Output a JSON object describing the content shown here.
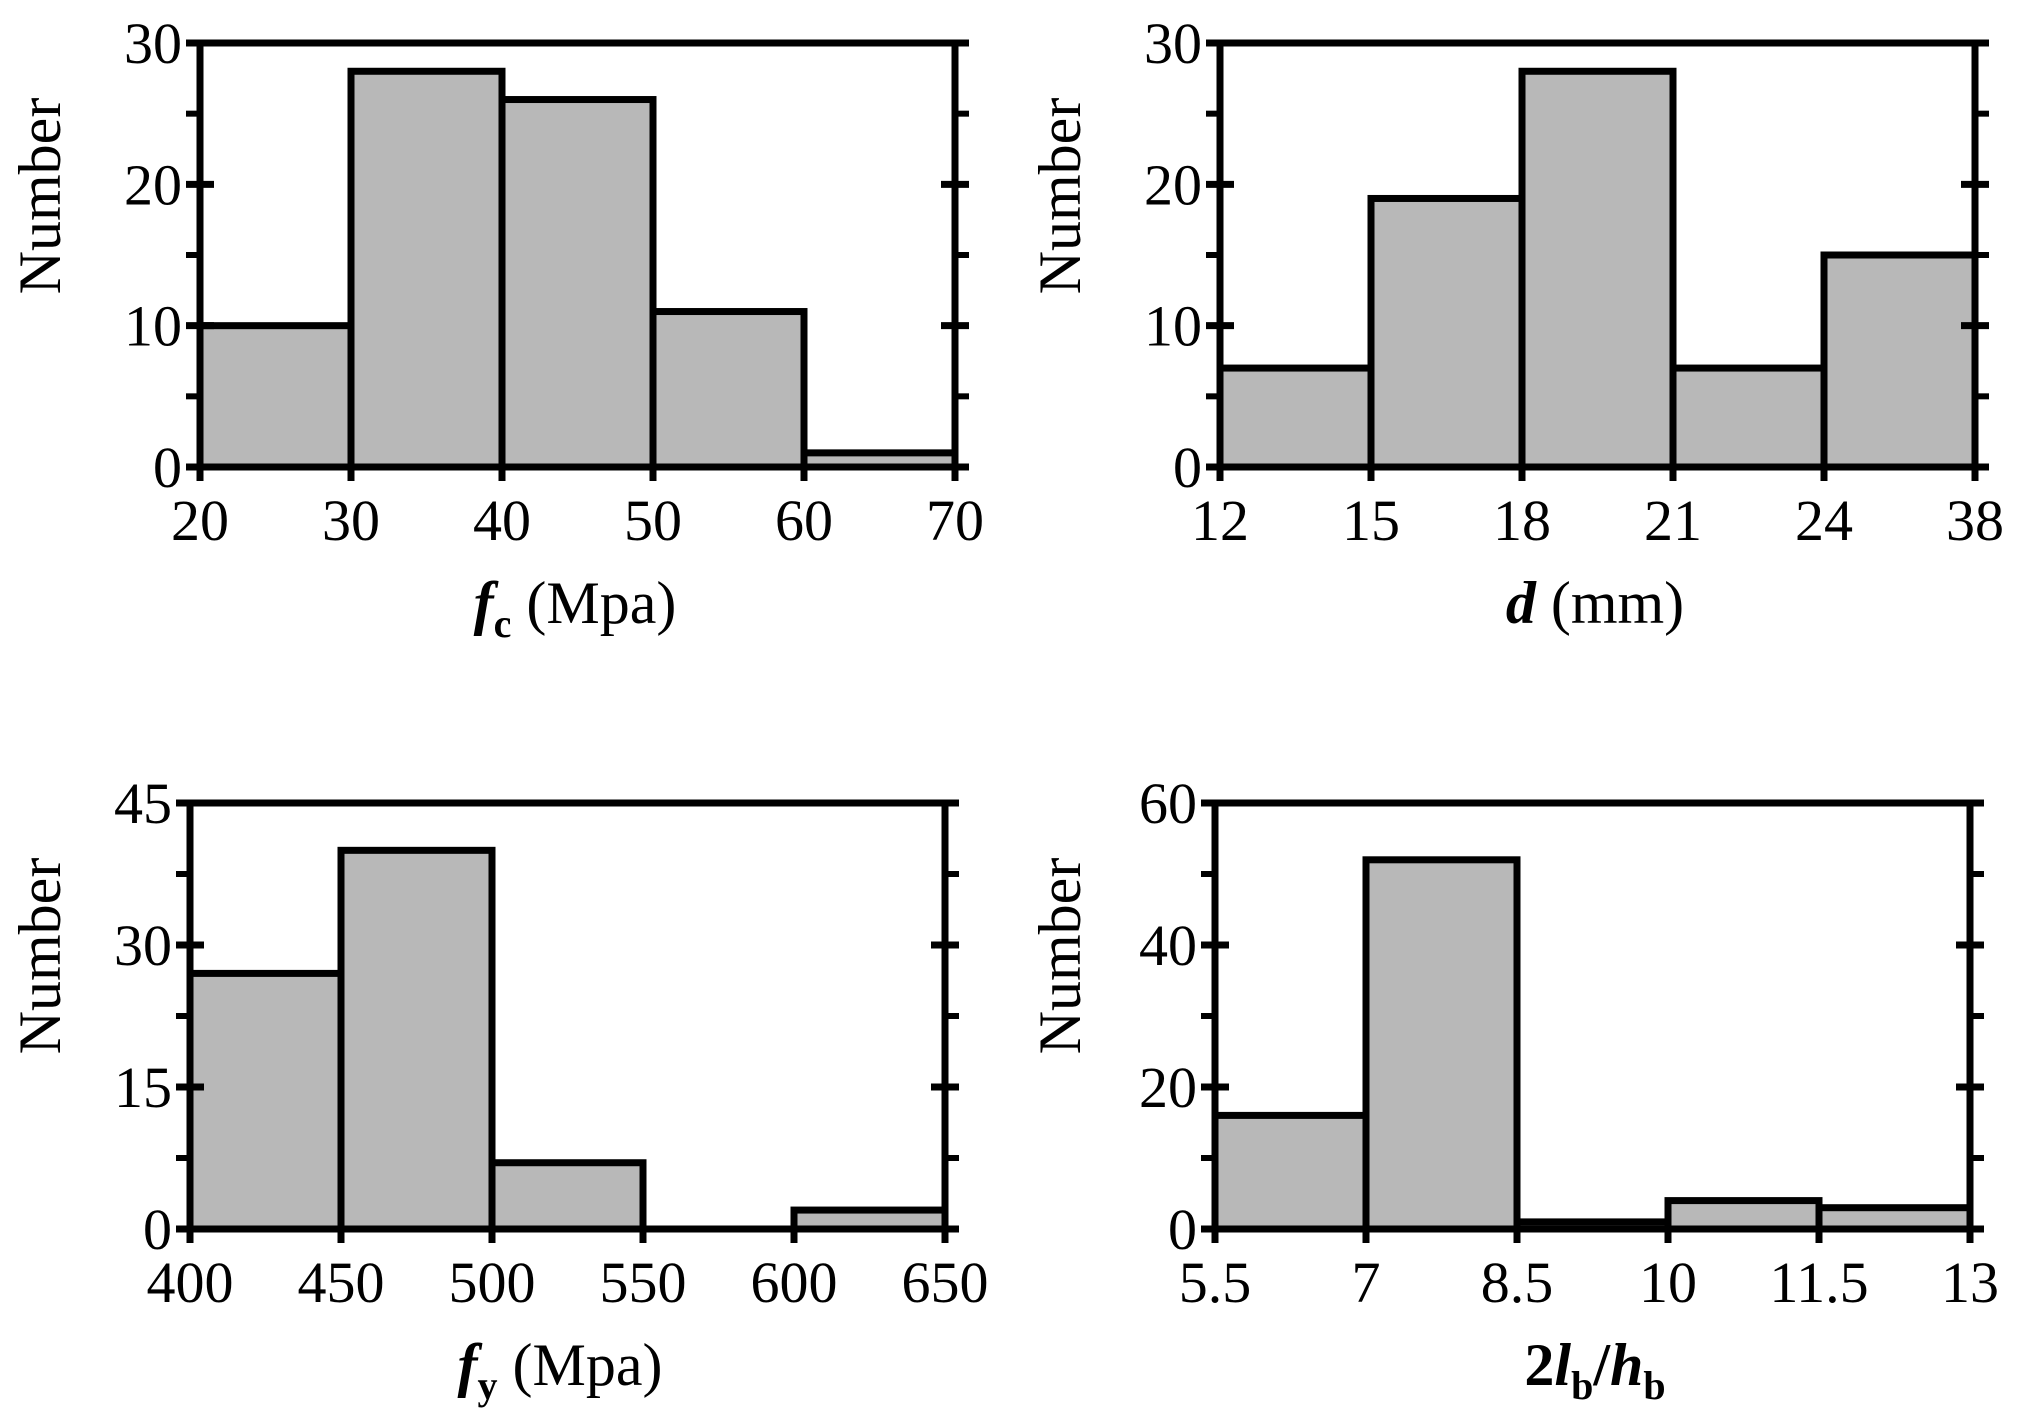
{
  "chart_data": [
    {
      "type": "bar",
      "subtype": "histogram",
      "ylabel": "Number",
      "xlabel": {
        "var": "f",
        "sub": "c",
        "unit": "(Mpa)"
      },
      "bin_edges": [
        "20",
        "30",
        "40",
        "50",
        "60",
        "70"
      ],
      "values": [
        10,
        28,
        26,
        11,
        1
      ],
      "ylim": [
        0,
        30
      ],
      "yticks": [
        "0",
        "10",
        "20",
        "30"
      ],
      "bar_color": "#b8b8b8"
    },
    {
      "type": "bar",
      "subtype": "histogram",
      "ylabel": "Number",
      "xlabel": {
        "var": "d",
        "sub": "",
        "unit": "(mm)"
      },
      "bin_edges": [
        "12",
        "15",
        "18",
        "21",
        "24",
        "38"
      ],
      "values": [
        7,
        19,
        28,
        7,
        15
      ],
      "ylim": [
        0,
        30
      ],
      "yticks": [
        "0",
        "10",
        "20",
        "30"
      ],
      "bar_color": "#b8b8b8"
    },
    {
      "type": "bar",
      "subtype": "histogram",
      "ylabel": "Number",
      "xlabel": {
        "var": "f",
        "sub": "y",
        "unit": "(Mpa)"
      },
      "bin_edges": [
        "400",
        "450",
        "500",
        "550",
        "600",
        "650"
      ],
      "values": [
        27,
        40,
        7,
        0,
        2
      ],
      "ylim": [
        0,
        45
      ],
      "yticks": [
        "0",
        "15",
        "30",
        "45"
      ],
      "bar_color": "#b8b8b8"
    },
    {
      "type": "bar",
      "subtype": "histogram",
      "ylabel": "Number",
      "xlabel": {
        "prefix": "2",
        "var": "l",
        "sub": "b",
        "sep": "/",
        "var2": "h",
        "sub2": "b"
      },
      "bin_edges": [
        "5.5",
        "7",
        "8.5",
        "10",
        "11.5",
        "13"
      ],
      "values": [
        16,
        52,
        1,
        4,
        3
      ],
      "ylim": [
        0,
        60
      ],
      "yticks": [
        "0",
        "20",
        "40",
        "60"
      ],
      "bar_color": "#b8b8b8"
    }
  ]
}
